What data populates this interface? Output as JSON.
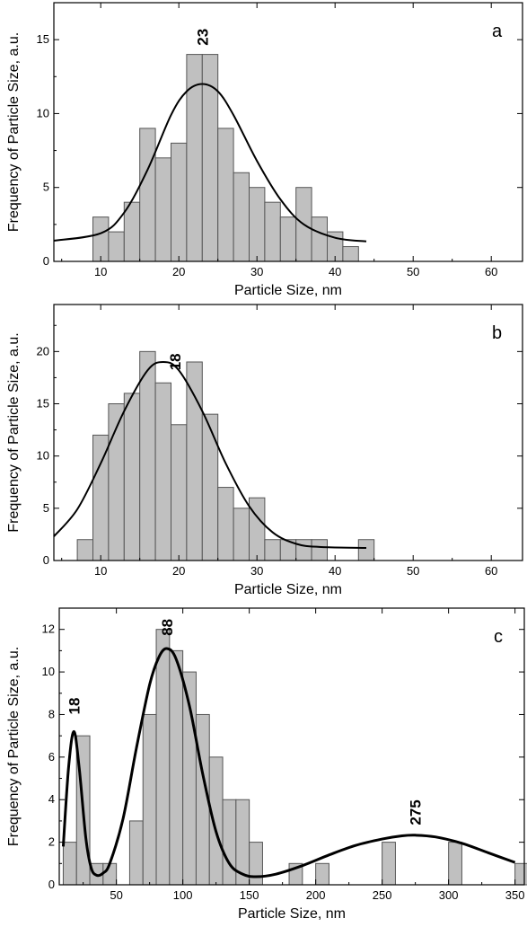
{
  "chart_data": [
    {
      "type": "bar",
      "panel_label": "a",
      "xlabel": "Particle Size, nm",
      "ylabel": "Frequency of Particle Size, a.u.",
      "xlim": [
        4,
        64
      ],
      "ylim": [
        0,
        17.5
      ],
      "x_ticks": [
        10,
        20,
        30,
        40,
        50,
        60
      ],
      "y_ticks": [
        0,
        5,
        10,
        15
      ],
      "grid": false,
      "bin_width": 2,
      "bins": [
        {
          "x": 10,
          "y": 3
        },
        {
          "x": 12,
          "y": 2
        },
        {
          "x": 14,
          "y": 4
        },
        {
          "x": 16,
          "y": 9
        },
        {
          "x": 18,
          "y": 7
        },
        {
          "x": 20,
          "y": 8
        },
        {
          "x": 22,
          "y": 14
        },
        {
          "x": 24,
          "y": 14
        },
        {
          "x": 26,
          "y": 9
        },
        {
          "x": 28,
          "y": 6
        },
        {
          "x": 30,
          "y": 5
        },
        {
          "x": 32,
          "y": 4
        },
        {
          "x": 34,
          "y": 3
        },
        {
          "x": 36,
          "y": 5
        },
        {
          "x": 38,
          "y": 3
        },
        {
          "x": 40,
          "y": 2
        },
        {
          "x": 42,
          "y": 1
        }
      ],
      "fit": [
        {
          "x": 4,
          "y": 1.4
        },
        {
          "x": 10,
          "y": 1.9
        },
        {
          "x": 13,
          "y": 3.3
        },
        {
          "x": 16,
          "y": 6.2
        },
        {
          "x": 19,
          "y": 9.9
        },
        {
          "x": 21,
          "y": 11.5
        },
        {
          "x": 23,
          "y": 12
        },
        {
          "x": 25,
          "y": 11.5
        },
        {
          "x": 27,
          "y": 9.9
        },
        {
          "x": 30,
          "y": 6.8
        },
        {
          "x": 33,
          "y": 4.2
        },
        {
          "x": 36,
          "y": 2.5
        },
        {
          "x": 40,
          "y": 1.6
        },
        {
          "x": 44,
          "y": 1.35
        }
      ],
      "annotations": [
        {
          "text": "23",
          "x": 23,
          "y": 14.6,
          "rotate": -90
        }
      ]
    },
    {
      "type": "bar",
      "panel_label": "b",
      "xlabel": "Particle Size, nm",
      "ylabel": "Frequency of Particle Size, a.u.",
      "xlim": [
        4,
        64
      ],
      "ylim": [
        0,
        24.5
      ],
      "x_ticks": [
        10,
        20,
        30,
        40,
        50,
        60
      ],
      "y_ticks": [
        0,
        5,
        10,
        15,
        20
      ],
      "grid": false,
      "bin_width": 2,
      "bins": [
        {
          "x": 8,
          "y": 2
        },
        {
          "x": 10,
          "y": 12
        },
        {
          "x": 12,
          "y": 15
        },
        {
          "x": 14,
          "y": 16
        },
        {
          "x": 16,
          "y": 20
        },
        {
          "x": 18,
          "y": 17
        },
        {
          "x": 20,
          "y": 13
        },
        {
          "x": 22,
          "y": 19
        },
        {
          "x": 24,
          "y": 14
        },
        {
          "x": 26,
          "y": 7
        },
        {
          "x": 28,
          "y": 5
        },
        {
          "x": 30,
          "y": 6
        },
        {
          "x": 32,
          "y": 2
        },
        {
          "x": 34,
          "y": 2
        },
        {
          "x": 36,
          "y": 2
        },
        {
          "x": 38,
          "y": 2
        },
        {
          "x": 40,
          "y": 0
        },
        {
          "x": 42,
          "y": 0
        },
        {
          "x": 44,
          "y": 2
        }
      ],
      "fit": [
        {
          "x": 4,
          "y": 2.3
        },
        {
          "x": 7,
          "y": 4.9
        },
        {
          "x": 10,
          "y": 9.3
        },
        {
          "x": 13,
          "y": 14.3
        },
        {
          "x": 16,
          "y": 18.2
        },
        {
          "x": 18,
          "y": 19
        },
        {
          "x": 20,
          "y": 18.2
        },
        {
          "x": 23,
          "y": 14.3
        },
        {
          "x": 26,
          "y": 9.3
        },
        {
          "x": 29,
          "y": 5.2
        },
        {
          "x": 32,
          "y": 2.7
        },
        {
          "x": 35,
          "y": 1.6
        },
        {
          "x": 38,
          "y": 1.3
        },
        {
          "x": 44,
          "y": 1.2
        }
      ],
      "annotations": [
        {
          "text": "18",
          "x": 19.5,
          "y": 18.2,
          "rotate": -90
        }
      ]
    },
    {
      "type": "bar",
      "panel_label": "c",
      "xlabel": "Particle Size, nm",
      "ylabel": "Frequency of Particle Size, a.u.",
      "xlim": [
        7,
        357
      ],
      "ylim": [
        0,
        13
      ],
      "x_ticks": [
        50,
        100,
        150,
        200,
        250,
        300,
        350
      ],
      "y_ticks": [
        0,
        2,
        4,
        6,
        8,
        10,
        12
      ],
      "grid": false,
      "bin_width": 10,
      "bins": [
        {
          "x": 15,
          "y": 2
        },
        {
          "x": 25,
          "y": 7
        },
        {
          "x": 35,
          "y": 1
        },
        {
          "x": 45,
          "y": 1
        },
        {
          "x": 65,
          "y": 3
        },
        {
          "x": 75,
          "y": 8
        },
        {
          "x": 85,
          "y": 12
        },
        {
          "x": 95,
          "y": 11
        },
        {
          "x": 105,
          "y": 10
        },
        {
          "x": 115,
          "y": 8
        },
        {
          "x": 125,
          "y": 6
        },
        {
          "x": 135,
          "y": 4
        },
        {
          "x": 145,
          "y": 4
        },
        {
          "x": 155,
          "y": 2
        },
        {
          "x": 185,
          "y": 1
        },
        {
          "x": 205,
          "y": 1
        },
        {
          "x": 255,
          "y": 2
        },
        {
          "x": 305,
          "y": 2
        },
        {
          "x": 355,
          "y": 1
        }
      ],
      "fit": [
        {
          "x": 10,
          "y": 1.8
        },
        {
          "x": 14,
          "y": 5.5
        },
        {
          "x": 18,
          "y": 7.2
        },
        {
          "x": 22,
          "y": 5.5
        },
        {
          "x": 27,
          "y": 2.2
        },
        {
          "x": 31,
          "y": 0.8
        },
        {
          "x": 35,
          "y": 0.45
        },
        {
          "x": 40,
          "y": 0.55
        },
        {
          "x": 45,
          "y": 1.0
        },
        {
          "x": 55,
          "y": 3.1
        },
        {
          "x": 65,
          "y": 6.4
        },
        {
          "x": 75,
          "y": 9.4
        },
        {
          "x": 82,
          "y": 10.7
        },
        {
          "x": 88,
          "y": 11.1
        },
        {
          "x": 95,
          "y": 10.6
        },
        {
          "x": 105,
          "y": 8.4
        },
        {
          "x": 115,
          "y": 5.2
        },
        {
          "x": 125,
          "y": 2.5
        },
        {
          "x": 135,
          "y": 1.0
        },
        {
          "x": 145,
          "y": 0.5
        },
        {
          "x": 155,
          "y": 0.38
        },
        {
          "x": 170,
          "y": 0.5
        },
        {
          "x": 190,
          "y": 0.9
        },
        {
          "x": 210,
          "y": 1.4
        },
        {
          "x": 230,
          "y": 1.85
        },
        {
          "x": 250,
          "y": 2.15
        },
        {
          "x": 265,
          "y": 2.3
        },
        {
          "x": 275,
          "y": 2.33
        },
        {
          "x": 290,
          "y": 2.25
        },
        {
          "x": 310,
          "y": 1.95
        },
        {
          "x": 330,
          "y": 1.5
        },
        {
          "x": 350,
          "y": 1.05
        }
      ],
      "annotations": [
        {
          "text": "18",
          "x": 18,
          "y": 8.0,
          "rotate": -90
        },
        {
          "text": "88",
          "x": 88,
          "y": 11.7,
          "rotate": -90
        },
        {
          "text": "275",
          "x": 275,
          "y": 2.8,
          "rotate": -90
        }
      ]
    }
  ]
}
